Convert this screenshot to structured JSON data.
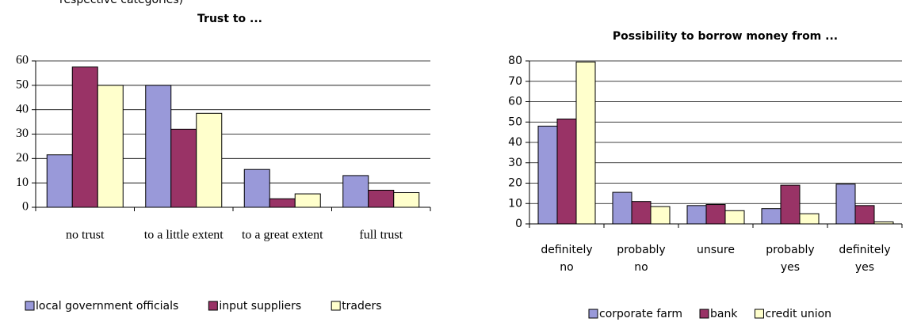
{
  "note": "respective categories)",
  "chart_data": [
    {
      "type": "bar",
      "title": "Trust to ...",
      "categories": [
        "no trust",
        "to a little extent",
        "to a great extent",
        "full trust"
      ],
      "series": [
        {
          "name": "local government officials",
          "color": "#9999d9",
          "values": [
            21.5,
            50,
            15.5,
            13
          ]
        },
        {
          "name": "input suppliers",
          "color": "#993366",
          "values": [
            57.5,
            32,
            3.5,
            7
          ]
        },
        {
          "name": "traders",
          "color": "#ffffcc",
          "values": [
            50,
            38.5,
            5.5,
            6
          ]
        }
      ],
      "ylim": [
        0,
        60
      ],
      "yticks": [
        0,
        10,
        20,
        30,
        40,
        50,
        60
      ],
      "grid": true,
      "legend": "bottom"
    },
    {
      "type": "bar",
      "title": "Possibility to borrow money from ...",
      "categories": [
        "definitely no",
        "probably no",
        "unsure",
        "probably yes",
        "definitely yes"
      ],
      "series": [
        {
          "name": "corporate farm",
          "color": "#9999d9",
          "values": [
            48,
            15.5,
            9,
            7.5,
            19.5
          ]
        },
        {
          "name": "bank",
          "color": "#993366",
          "values": [
            51.5,
            11,
            9.5,
            19,
            9
          ]
        },
        {
          "name": "credit union",
          "color": "#ffffcc",
          "values": [
            79.5,
            8.5,
            6.5,
            5,
            1
          ]
        }
      ],
      "ylim": [
        0,
        80
      ],
      "yticks": [
        0,
        10,
        20,
        30,
        40,
        50,
        60,
        70,
        80
      ],
      "grid": true,
      "legend": "bottom"
    }
  ]
}
